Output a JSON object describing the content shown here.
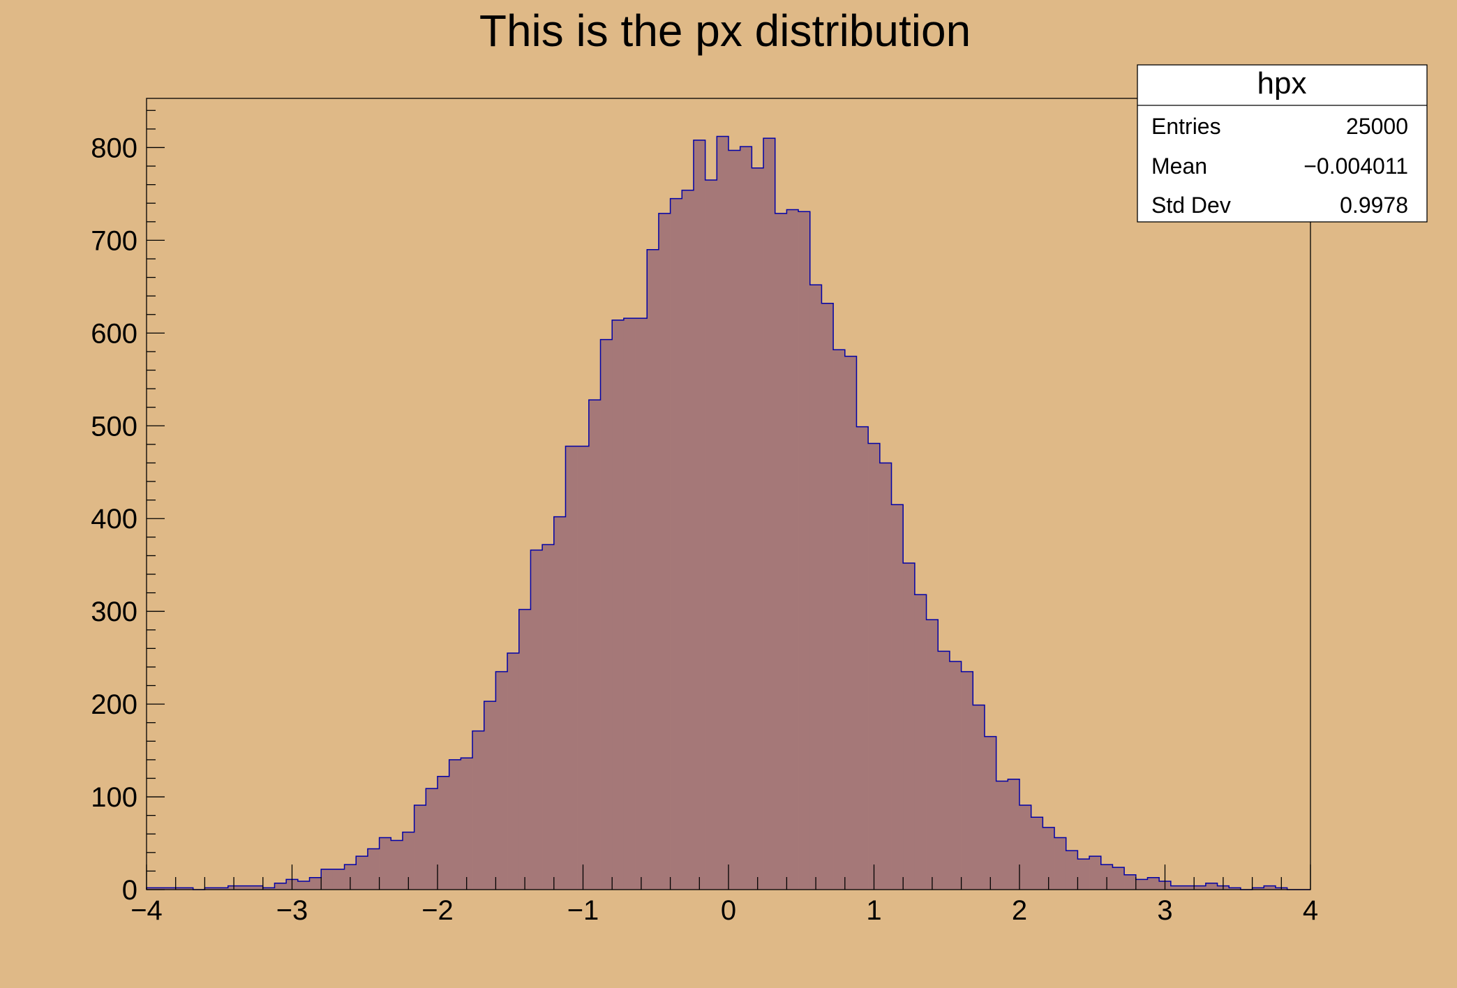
{
  "chart_data": {
    "type": "bar",
    "title": "This is the px distribution",
    "xlabel": "",
    "ylabel": "",
    "xlim": [
      -4,
      4
    ],
    "ylim": [
      0,
      853
    ],
    "bin_width": 0.08,
    "x_ticks": [
      "−4",
      "−3",
      "−2",
      "−1",
      "0",
      "1",
      "2",
      "3",
      "4"
    ],
    "y_ticks": [
      "0",
      "100",
      "200",
      "300",
      "400",
      "500",
      "600",
      "700",
      "800"
    ],
    "values": [
      2,
      2,
      2,
      2,
      0,
      2,
      2,
      4,
      4,
      4,
      2,
      7,
      11,
      9,
      13,
      22,
      22,
      27,
      36,
      44,
      56,
      53,
      62,
      91,
      109,
      122,
      140,
      142,
      171,
      203,
      235,
      255,
      302,
      366,
      372,
      402,
      478,
      478,
      528,
      593,
      614,
      616,
      616,
      690,
      729,
      745,
      754,
      808,
      765,
      812,
      797,
      801,
      778,
      810,
      729,
      733,
      731,
      652,
      632,
      582,
      575,
      499,
      481,
      460,
      415,
      352,
      318,
      291,
      257,
      246,
      235,
      199,
      165,
      117,
      119,
      91,
      78,
      67,
      56,
      42,
      33,
      36,
      27,
      24,
      16,
      11,
      13,
      9,
      4,
      4,
      4,
      7,
      4,
      2,
      0,
      2,
      4,
      2,
      0,
      0
    ],
    "grid": false,
    "colors": {
      "background": "#dfb987",
      "fill": "#a57878",
      "line": "#0000a8",
      "frame": "#000000"
    }
  },
  "stats_box": {
    "title": "hpx",
    "rows": [
      {
        "label": "Entries",
        "value": "25000"
      },
      {
        "label": "Mean",
        "value": "−0.004011"
      },
      {
        "label": "Std Dev",
        "value": "0.9978"
      }
    ]
  }
}
